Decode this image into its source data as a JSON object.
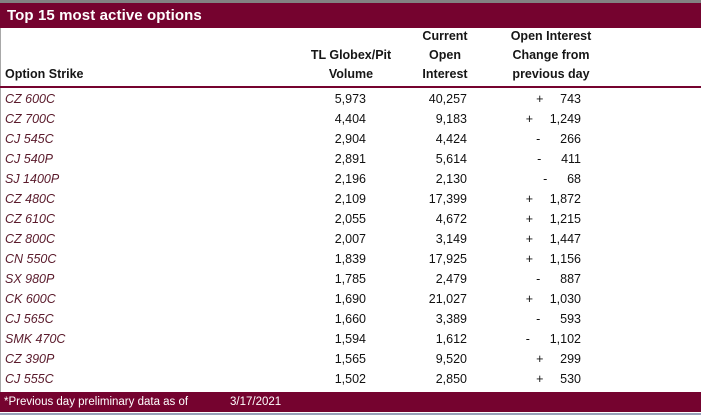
{
  "title_bar": {
    "title": "Top 15 most active options"
  },
  "colors": {
    "maroon": "#75032F",
    "strike_text": "#5A1A2B",
    "top_border": "#828282",
    "bottom_line": "#97A0B8"
  },
  "header": {
    "col1": "Option Strike",
    "col2_lines": [
      "TL Globex/Pit",
      "Volume"
    ],
    "col3_lines": [
      "Current",
      "Open",
      "Interest"
    ],
    "col4_lines": [
      "Open Interest",
      "Change from",
      "previous day"
    ]
  },
  "table": {
    "rows": [
      {
        "strike": "CZ 600C",
        "volume": "5,973",
        "open_interest": "40,257",
        "sign": "+",
        "change": "743"
      },
      {
        "strike": "CZ 700C",
        "volume": "4,404",
        "open_interest": "9,183",
        "sign": "+",
        "change": "1,249"
      },
      {
        "strike": "CJ 545C",
        "volume": "2,904",
        "open_interest": "4,424",
        "sign": "-",
        "change": "266"
      },
      {
        "strike": "CJ 540P",
        "volume": "2,891",
        "open_interest": "5,614",
        "sign": "-",
        "change": "411"
      },
      {
        "strike": "SJ 1400P",
        "volume": "2,196",
        "open_interest": "2,130",
        "sign": "-",
        "change": "68"
      },
      {
        "strike": "CZ 480C",
        "volume": "2,109",
        "open_interest": "17,399",
        "sign": "+",
        "change": "1,872"
      },
      {
        "strike": "CZ 610C",
        "volume": "2,055",
        "open_interest": "4,672",
        "sign": "+",
        "change": "1,215"
      },
      {
        "strike": "CZ 800C",
        "volume": "2,007",
        "open_interest": "3,149",
        "sign": "+",
        "change": "1,447"
      },
      {
        "strike": "CN 550C",
        "volume": "1,839",
        "open_interest": "17,925",
        "sign": "+",
        "change": "1,156"
      },
      {
        "strike": "SX 980P",
        "volume": "1,785",
        "open_interest": "2,479",
        "sign": "-",
        "change": "887"
      },
      {
        "strike": "CK 600C",
        "volume": "1,690",
        "open_interest": "21,027",
        "sign": "+",
        "change": "1,030"
      },
      {
        "strike": "CJ 565C",
        "volume": "1,660",
        "open_interest": "3,389",
        "sign": "-",
        "change": "593"
      },
      {
        "strike": "SMK 470C",
        "volume": "1,594",
        "open_interest": "1,612",
        "sign": "-",
        "change": "1,102"
      },
      {
        "strike": "CZ 390P",
        "volume": "1,565",
        "open_interest": "9,520",
        "sign": "+",
        "change": "299"
      },
      {
        "strike": "CJ 555C",
        "volume": "1,502",
        "open_interest": "2,850",
        "sign": "+",
        "change": "530"
      }
    ]
  },
  "footer": {
    "note": "*Previous day preliminary data as of",
    "date": "3/17/2021"
  },
  "chart_data": {
    "type": "table",
    "title": "Top 15 most active options",
    "columns": [
      "Option Strike",
      "TL Globex/Pit Volume",
      "Current Open Interest",
      "Open Interest Change from previous day"
    ],
    "rows": [
      [
        "CZ 600C",
        5973,
        40257,
        743
      ],
      [
        "CZ 700C",
        4404,
        9183,
        1249
      ],
      [
        "CJ 545C",
        2904,
        4424,
        -266
      ],
      [
        "CJ 540P",
        2891,
        5614,
        -411
      ],
      [
        "SJ 1400P",
        2196,
        2130,
        -68
      ],
      [
        "CZ 480C",
        2109,
        17399,
        1872
      ],
      [
        "CZ 610C",
        2055,
        4672,
        1215
      ],
      [
        "CZ 800C",
        2007,
        3149,
        1447
      ],
      [
        "CN 550C",
        1839,
        17925,
        1156
      ],
      [
        "SX 980P",
        1785,
        2479,
        -887
      ],
      [
        "CK 600C",
        1690,
        21027,
        1030
      ],
      [
        "CJ 565C",
        1660,
        3389,
        -593
      ],
      [
        "SMK 470C",
        1594,
        1612,
        -1102
      ],
      [
        "CZ 390P",
        1565,
        9520,
        299
      ],
      [
        "CJ 555C",
        1502,
        2850,
        530
      ]
    ],
    "footnote": "*Previous day preliminary data as of 3/17/2021"
  }
}
